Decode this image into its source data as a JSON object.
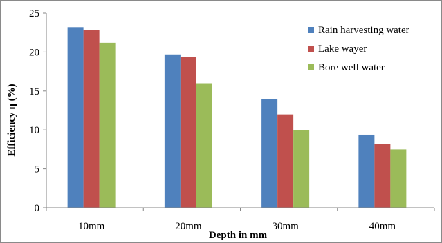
{
  "chart_data": {
    "type": "bar",
    "title": "",
    "xlabel": "Depth in mm",
    "ylabel": "Efficiency η (%)",
    "categories": [
      "10mm",
      "20mm",
      "30mm",
      "40mm"
    ],
    "ylim": [
      0,
      25
    ],
    "yticks": [
      0,
      5,
      10,
      15,
      20,
      25
    ],
    "grid": false,
    "legend_position": "top-right",
    "series": [
      {
        "name": "Rain harvesting water",
        "color": "#4F81BD",
        "values": [
          23.2,
          19.7,
          14.0,
          9.4
        ]
      },
      {
        "name": "Lake wayer",
        "color": "#C0504D",
        "values": [
          22.8,
          19.4,
          12.0,
          8.2
        ]
      },
      {
        "name": "Bore well water",
        "color": "#9BBB59",
        "values": [
          21.2,
          16.0,
          10.0,
          7.5
        ]
      }
    ]
  }
}
